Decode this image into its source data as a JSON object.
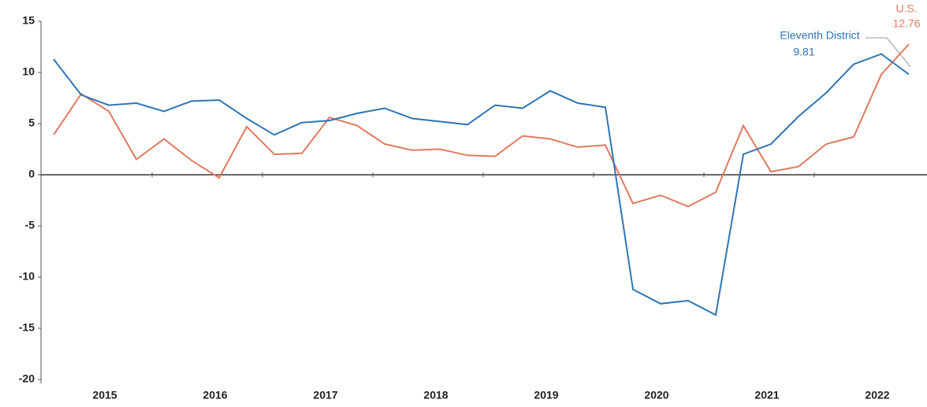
{
  "chart_data": {
    "type": "line",
    "categories": [
      null,
      null,
      "2015",
      null,
      null,
      null,
      "2016",
      null,
      null,
      null,
      "2017",
      null,
      null,
      null,
      "2018",
      null,
      null,
      null,
      "2019",
      null,
      null,
      null,
      "2020",
      null,
      null,
      null,
      "2021",
      null,
      null,
      null,
      "2022",
      null
    ],
    "series": [
      {
        "name": "Eleventh District",
        "color": "#2e75b6",
        "values": [
          11.3,
          7.8,
          6.8,
          7.0,
          6.2,
          7.2,
          7.3,
          5.5,
          3.9,
          5.1,
          5.3,
          6.0,
          6.5,
          5.5,
          5.2,
          4.9,
          6.8,
          6.5,
          8.2,
          7.0,
          6.6,
          -11.2,
          -12.6,
          -12.3,
          -13.7,
          2.0,
          3.0,
          5.7,
          8.0,
          10.8,
          11.8,
          9.81
        ]
      },
      {
        "name": "U.S.",
        "color": "#e07a5f",
        "values": [
          3.9,
          7.9,
          6.2,
          1.5,
          3.5,
          1.4,
          -0.3,
          4.7,
          2.0,
          2.1,
          5.6,
          4.8,
          3.0,
          2.4,
          2.5,
          1.9,
          1.8,
          3.8,
          3.5,
          2.7,
          2.9,
          -2.8,
          -2.0,
          -3.1,
          -1.7,
          4.8,
          0.3,
          0.8,
          3.0,
          3.7,
          9.8,
          12.76
        ]
      }
    ],
    "annotations": [
      {
        "text": "Eleventh District"
      },
      {
        "text": "9.81"
      },
      {
        "text": "U.S."
      },
      {
        "text": "12.76"
      }
    ],
    "ylim": [
      -20,
      15
    ],
    "yticks": [
      -20,
      -15,
      -10,
      -5,
      0,
      5,
      10,
      15
    ],
    "grid": false
  }
}
